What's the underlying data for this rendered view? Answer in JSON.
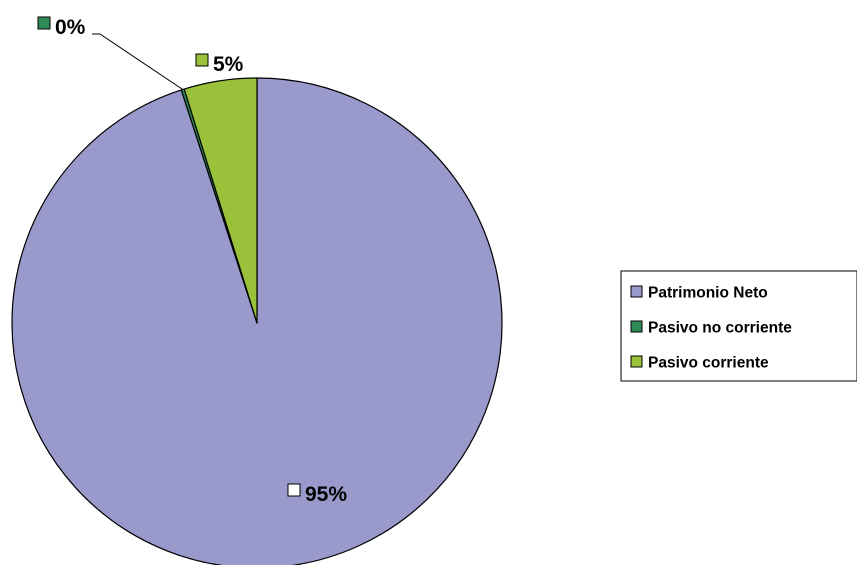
{
  "chart_data": {
    "type": "pie",
    "slices": [
      {
        "label": "Patrimonio Neto",
        "value": 95,
        "display": "95%",
        "color": "#9999cc"
      },
      {
        "label": "Pasivo no corriente",
        "value": 0.2,
        "display": "0%",
        "color": "#2e8b57"
      },
      {
        "label": "Pasivo corriente",
        "value": 4.8,
        "display": "5%",
        "color": "#99c23a"
      }
    ],
    "legend": {
      "position": "right",
      "entries": [
        "Patrimonio Neto",
        "Pasivo no corriente",
        "Pasivo corriente"
      ]
    },
    "data_labels": {
      "marker_colors": {
        "Patrimonio Neto": "#ffffff",
        "Pasivo no corriente": "#2e8b57",
        "Pasivo corriente": "#99c23a"
      }
    },
    "title": "",
    "start_angle": "top (12 o'clock)",
    "direction": "clockwise"
  }
}
